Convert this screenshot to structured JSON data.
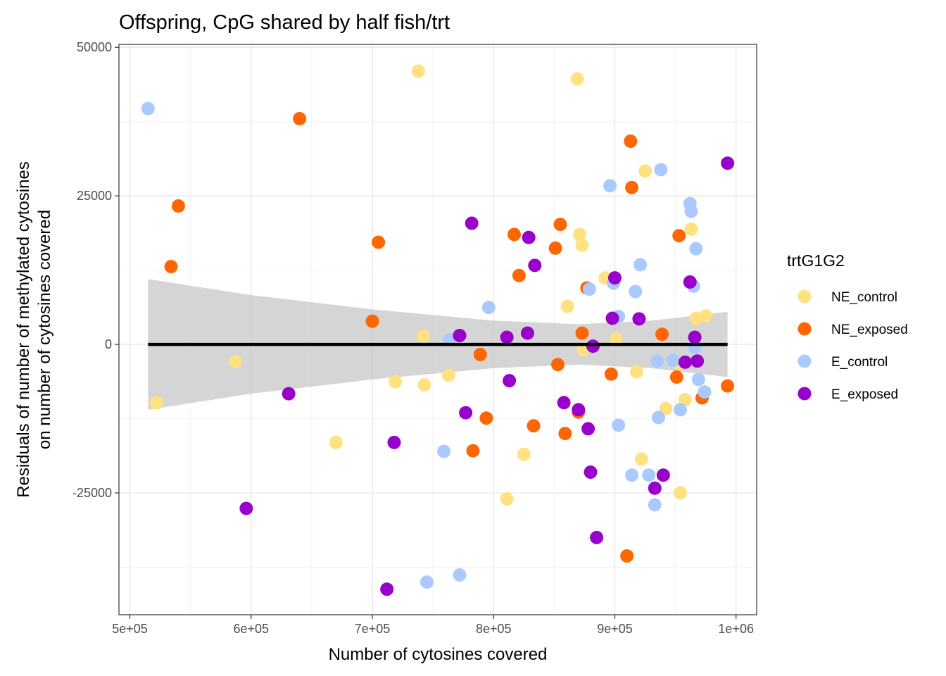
{
  "chart_data": {
    "type": "scatter",
    "title": "Offspring, CpG shared by half fish/trt",
    "xlabel": "Number of cytosines covered",
    "ylabel_lines": [
      "Residuals of number of methylated cytosines",
      "on number of cytosines covered"
    ],
    "xlim": [
      491000,
      1017000
    ],
    "ylim": [
      -45500,
      50500
    ],
    "x_ticks": [
      500000,
      600000,
      700000,
      800000,
      900000,
      1000000
    ],
    "x_tick_labels": [
      "5e+05",
      "6e+05",
      "7e+05",
      "8e+05",
      "9e+05",
      "1e+06"
    ],
    "y_ticks": [
      -25000,
      0,
      25000,
      50000
    ],
    "y_tick_labels": [
      "-25000",
      "0",
      "25000",
      "50000"
    ],
    "grid": true,
    "legend": {
      "title": "trtG1G2",
      "position": "right",
      "entries": [
        {
          "name": "NE_control",
          "color": "#FFE17F"
        },
        {
          "name": "NE_exposed",
          "color": "#FF6600"
        },
        {
          "name": "E_control",
          "color": "#A9C9FF"
        },
        {
          "name": "E_exposed",
          "color": "#9900CC"
        }
      ]
    },
    "smooth": {
      "x": [
        515000,
        993000
      ],
      "y": [
        0,
        0
      ],
      "band": [
        {
          "x": 515000,
          "lo": -11000,
          "hi": 11000
        },
        {
          "x": 600000,
          "lo": -8300,
          "hi": 8300
        },
        {
          "x": 700000,
          "lo": -5900,
          "hi": 5900
        },
        {
          "x": 800000,
          "lo": -4000,
          "hi": 4000
        },
        {
          "x": 870000,
          "lo": -3400,
          "hi": 3400
        },
        {
          "x": 930000,
          "lo": -4000,
          "hi": 4000
        },
        {
          "x": 993000,
          "lo": -5500,
          "hi": 5500
        }
      ],
      "line_color": "#000000",
      "band_color": "#BEBEBE"
    },
    "series": [
      {
        "name": "NE_control",
        "color": "#FFE17F",
        "points": [
          [
            522000,
            -9800
          ],
          [
            587000,
            -2900
          ],
          [
            670000,
            -16500
          ],
          [
            719000,
            -6300
          ],
          [
            738000,
            46000
          ],
          [
            742000,
            1400
          ],
          [
            743000,
            -6800
          ],
          [
            763000,
            -5200
          ],
          [
            811000,
            -26000
          ],
          [
            825000,
            -18500
          ],
          [
            861000,
            6400
          ],
          [
            869000,
            44700
          ],
          [
            871000,
            18500
          ],
          [
            873000,
            16700
          ],
          [
            874000,
            -900
          ],
          [
            892000,
            11200
          ],
          [
            901000,
            900
          ],
          [
            918000,
            -4600
          ],
          [
            922000,
            -19300
          ],
          [
            925000,
            29200
          ],
          [
            942000,
            -10800
          ],
          [
            953000,
            -3200
          ],
          [
            954000,
            -25000
          ],
          [
            958000,
            -9300
          ],
          [
            963000,
            19400
          ],
          [
            967000,
            4400
          ],
          [
            975000,
            4800
          ]
        ]
      },
      {
        "name": "NE_exposed",
        "color": "#FF6600",
        "points": [
          [
            534000,
            13100
          ],
          [
            540000,
            23300
          ],
          [
            640000,
            38000
          ],
          [
            700000,
            3900
          ],
          [
            705000,
            17200
          ],
          [
            783000,
            -17900
          ],
          [
            789000,
            -1700
          ],
          [
            794000,
            -12400
          ],
          [
            817000,
            18500
          ],
          [
            821000,
            11600
          ],
          [
            833000,
            -13700
          ],
          [
            851000,
            16200
          ],
          [
            853000,
            -3400
          ],
          [
            855000,
            20200
          ],
          [
            859000,
            -15000
          ],
          [
            870000,
            -11400
          ],
          [
            873000,
            1900
          ],
          [
            877000,
            9500
          ],
          [
            897000,
            -5000
          ],
          [
            910000,
            -35600
          ],
          [
            913000,
            34200
          ],
          [
            914000,
            26400
          ],
          [
            939000,
            1700
          ],
          [
            951000,
            -5500
          ],
          [
            953000,
            18300
          ],
          [
            972000,
            -9000
          ],
          [
            993000,
            -7000
          ]
        ]
      },
      {
        "name": "E_control",
        "color": "#A9C9FF",
        "points": [
          [
            515000,
            39700
          ],
          [
            745000,
            -40000
          ],
          [
            759000,
            -18000
          ],
          [
            764000,
            800
          ],
          [
            772000,
            -38800
          ],
          [
            796000,
            6200
          ],
          [
            879000,
            9300
          ],
          [
            896000,
            26700
          ],
          [
            899000,
            10300
          ],
          [
            903000,
            4700
          ],
          [
            903000,
            -13600
          ],
          [
            914000,
            -22000
          ],
          [
            917000,
            8900
          ],
          [
            921000,
            13400
          ],
          [
            928000,
            -22000
          ],
          [
            933000,
            -27000
          ],
          [
            935000,
            -2800
          ],
          [
            936000,
            -12300
          ],
          [
            938000,
            29400
          ],
          [
            948000,
            -2700
          ],
          [
            954000,
            -11000
          ],
          [
            962000,
            23700
          ],
          [
            963000,
            22400
          ],
          [
            965000,
            9800
          ],
          [
            966000,
            -500
          ],
          [
            967000,
            16100
          ],
          [
            969000,
            -5900
          ],
          [
            974000,
            -8000
          ]
        ]
      },
      {
        "name": "E_exposed",
        "color": "#9900CC",
        "points": [
          [
            596000,
            -27600
          ],
          [
            631000,
            -8300
          ],
          [
            712000,
            -41200
          ],
          [
            718000,
            -16500
          ],
          [
            772000,
            1500
          ],
          [
            777000,
            -11500
          ],
          [
            782000,
            20400
          ],
          [
            811000,
            1200
          ],
          [
            813000,
            -6100
          ],
          [
            828000,
            1900
          ],
          [
            829000,
            18000
          ],
          [
            834000,
            13300
          ],
          [
            858000,
            -9800
          ],
          [
            870000,
            -11000
          ],
          [
            878000,
            -14200
          ],
          [
            880000,
            -21500
          ],
          [
            882000,
            -300
          ],
          [
            885000,
            -32500
          ],
          [
            898000,
            4400
          ],
          [
            900000,
            11200
          ],
          [
            920000,
            4300
          ],
          [
            933000,
            -24200
          ],
          [
            940000,
            -22000
          ],
          [
            958000,
            -3000
          ],
          [
            962000,
            10500
          ],
          [
            966000,
            1200
          ],
          [
            968000,
            -2800
          ],
          [
            993000,
            30500
          ]
        ]
      }
    ]
  }
}
